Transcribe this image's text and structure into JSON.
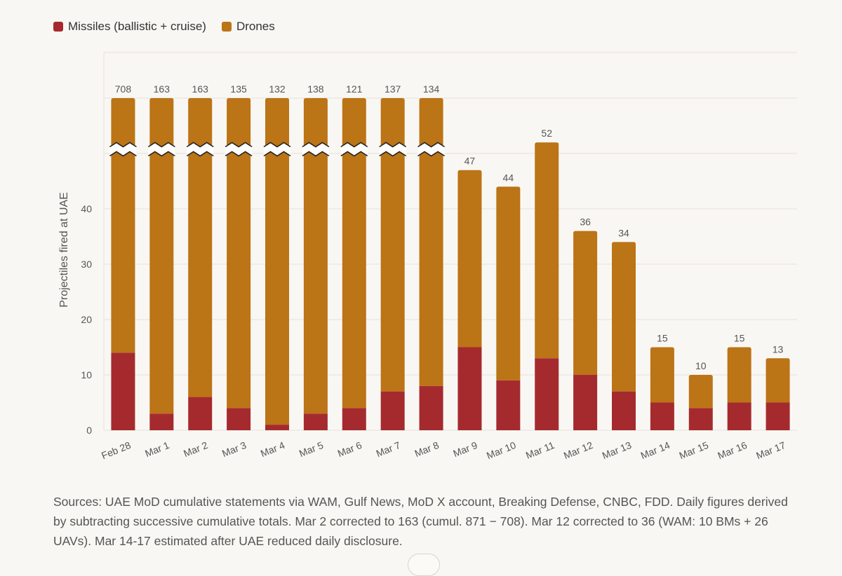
{
  "legend": {
    "missiles_label": "Missiles (ballistic + cruise)",
    "drones_label": "Drones"
  },
  "colors": {
    "missiles": "#a52a2e",
    "drones": "#bb7416",
    "grid": "#e6e2db",
    "axis_text": "#555555"
  },
  "sources_text": "Sources: UAE MoD cumulative statements via WAM, Gulf News, MoD X account, Breaking Defense, CNBC, FDD. Daily figures derived by subtracting successive cumulative totals. Mar 2 corrected to 163 (cumul. 871 − 708). Mar 12 corrected to 36 (WAM: 10 BMs + 26 UAVs). Mar 14-17 estimated after UAE reduced daily disclosure.",
  "chart_data": {
    "type": "bar",
    "stacked": true,
    "axis_break": true,
    "ylabel": "Projectiles fired at UAE",
    "ylim": [
      0,
      60
    ],
    "yticks": [
      0,
      10,
      20,
      30,
      40
    ],
    "grid": true,
    "legend_position": "top-left",
    "categories": [
      "Feb 28",
      "Mar 1",
      "Mar 2",
      "Mar 3",
      "Mar 4",
      "Mar 5",
      "Mar 6",
      "Mar 7",
      "Mar 8",
      "Mar 9",
      "Mar 10",
      "Mar 11",
      "Mar 12",
      "Mar 13",
      "Mar 14",
      "Mar 15",
      "Mar 16",
      "Mar 17"
    ],
    "totals": [
      708,
      163,
      163,
      135,
      132,
      138,
      121,
      137,
      134,
      47,
      44,
      52,
      36,
      34,
      15,
      10,
      15,
      13
    ],
    "series": [
      {
        "name": "Missiles (ballistic + cruise)",
        "values": [
          14,
          3,
          6,
          4,
          1,
          3,
          4,
          7,
          8,
          15,
          9,
          13,
          10,
          7,
          5,
          4,
          5,
          5
        ]
      },
      {
        "name": "Drones",
        "values": [
          694,
          160,
          157,
          131,
          131,
          135,
          117,
          130,
          126,
          32,
          35,
          39,
          26,
          27,
          10,
          6,
          10,
          8
        ]
      }
    ]
  }
}
